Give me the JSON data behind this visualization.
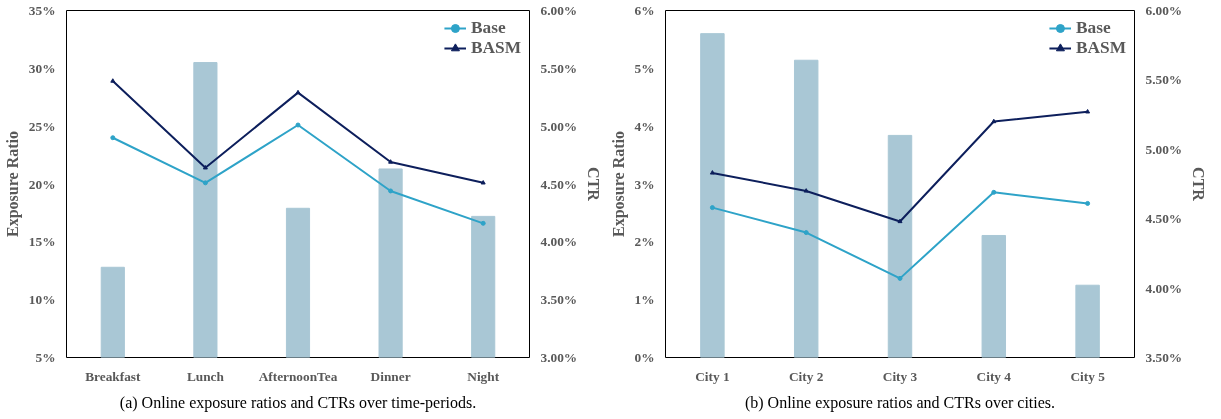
{
  "chart_data": [
    {
      "type": "bar",
      "categories": [
        "Breakfast",
        "Lunch",
        "AfternoonTea",
        "Dinner",
        "Night"
      ],
      "xlabel": null,
      "ylabel": "Exposure Ratio",
      "y2label": "CTR",
      "series": [
        {
          "color": "#a9c7d5",
          "values": [
            12.8,
            30.5,
            17.9,
            21.3,
            17.2
          ]
        },
        {
          "type": "line",
          "name": "Base",
          "color": "#2ea3c8",
          "marker": "circle",
          "axis": "y2",
          "values": [
            4.9,
            4.51,
            5.01,
            4.44,
            4.16
          ]
        },
        {
          "type": "line",
          "name": "BASM",
          "color": "#0d1f5c",
          "marker": "triangle",
          "axis": "y2",
          "values": [
            5.39,
            4.64,
            5.29,
            4.69,
            4.51
          ]
        }
      ],
      "ylim": [
        5,
        35
      ],
      "yticks": [
        {
          "value": 5,
          "label": "5%"
        },
        {
          "value": 10,
          "label": "10%"
        },
        {
          "value": 15,
          "label": "15%"
        },
        {
          "value": 20,
          "label": "20%"
        },
        {
          "value": 25,
          "label": "25%"
        },
        {
          "value": 30,
          "label": "30%"
        },
        {
          "value": 35,
          "label": "35%"
        }
      ],
      "y2lim": [
        3,
        6
      ],
      "y2ticks": [
        {
          "value": 3,
          "label": "3.00%"
        },
        {
          "value": 3.5,
          "label": "3.50%"
        },
        {
          "value": 4,
          "label": "4.00%"
        },
        {
          "value": 4.5,
          "label": "4.50%"
        },
        {
          "value": 5,
          "label": "5.00%"
        },
        {
          "value": 5.5,
          "label": "5.50%"
        },
        {
          "value": 6,
          "label": "6.00%"
        }
      ],
      "legend": "top right",
      "grid": false,
      "annotations": [
        "(a) Online exposure ratios and CTRs over time-periods."
      ]
    },
    {
      "type": "bar",
      "categories": [
        "City 1",
        "City 2",
        "City 3",
        "City 4",
        "City 5"
      ],
      "ylabel": "Exposure Ratio",
      "y2label": "CTR",
      "series": [
        {
          "color": "#a9c7d5",
          "values": [
            5.6,
            5.14,
            3.84,
            2.11,
            1.25
          ]
        },
        {
          "type": "line",
          "name": "Base",
          "color": "#2ea3c8",
          "marker": "circle",
          "axis": "y2",
          "values": [
            4.58,
            4.4,
            4.07,
            4.69,
            4.61
          ]
        },
        {
          "type": "line",
          "name": "BASM",
          "color": "#0d1f5c",
          "marker": "triangle",
          "axis": "y2",
          "values": [
            4.83,
            4.7,
            4.48,
            5.2,
            5.27
          ]
        }
      ],
      "ylim": [
        0,
        6
      ],
      "yticks": [
        {
          "value": 0,
          "label": "0%"
        },
        {
          "value": 1,
          "label": "1%"
        },
        {
          "value": 2,
          "label": "2%"
        },
        {
          "value": 3,
          "label": "3%"
        },
        {
          "value": 4,
          "label": "4%"
        },
        {
          "value": 5,
          "label": "5%"
        },
        {
          "value": 6,
          "label": "6%"
        }
      ],
      "y2lim": [
        3.5,
        6
      ],
      "y2ticks": [
        {
          "value": 3.5,
          "label": "3.50%"
        },
        {
          "value": 4,
          "label": "4.00%"
        },
        {
          "value": 4.5,
          "label": "4.50%"
        },
        {
          "value": 5,
          "label": "5.00%"
        },
        {
          "value": 5.5,
          "label": "5.50%"
        },
        {
          "value": 6,
          "label": "6.00%"
        }
      ],
      "legend": "top right",
      "grid": false,
      "annotations": [
        "(b) Online exposure ratios and CTRs over cities."
      ]
    }
  ]
}
